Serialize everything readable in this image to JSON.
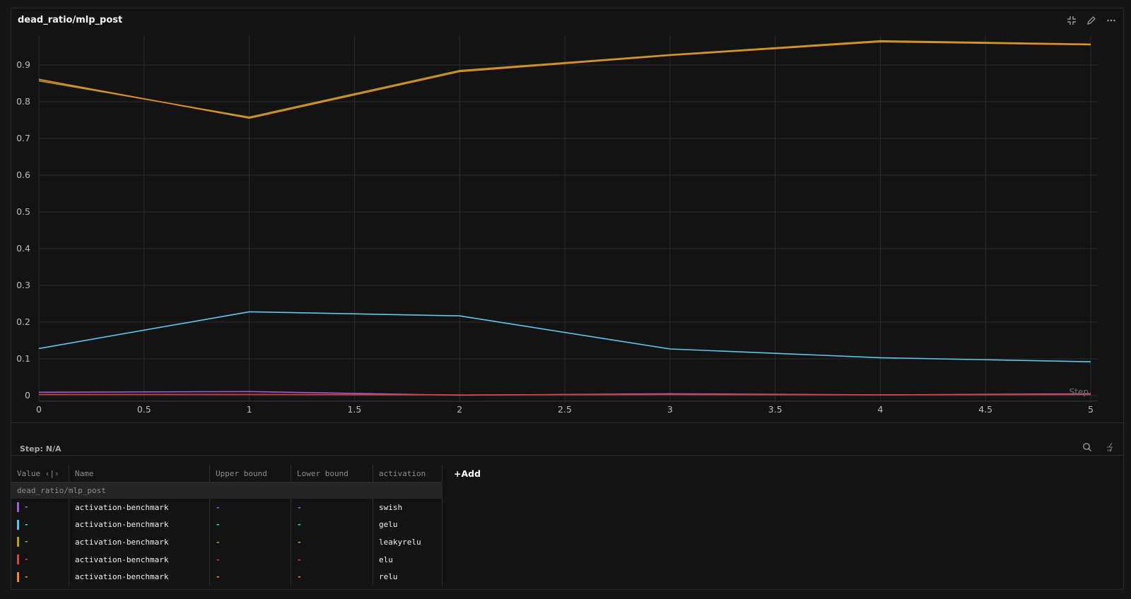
{
  "panel": {
    "title": "dead_ratio/mlp_post"
  },
  "colors": {
    "swish": "#9b5fd2",
    "gelu": "#5ac8f2",
    "leakyrelu": "#b5a019",
    "elu": "#e03e3e",
    "relu": "#ee8a2c"
  },
  "chart_data": {
    "type": "line",
    "title": "dead_ratio/mlp_post",
    "xlabel": "Step",
    "ylabel": "",
    "xlim": [
      0,
      5
    ],
    "ylim": [
      0,
      0.97
    ],
    "xticks": [
      "0",
      "0.5",
      "1",
      "1.5",
      "2",
      "2.5",
      "3",
      "3.5",
      "4",
      "4.5",
      "5"
    ],
    "yticks": [
      "0",
      "0.1",
      "0.2",
      "0.3",
      "0.4",
      "0.5",
      "0.6",
      "0.7",
      "0.8",
      "0.9"
    ],
    "grid": true,
    "x": [
      0,
      1,
      2,
      3,
      4,
      5
    ],
    "series": [
      {
        "name": "swish",
        "color": "#9b5fd2",
        "values": [
          0.009,
          0.011,
          0.001,
          0.005,
          0.002,
          0.005
        ]
      },
      {
        "name": "gelu",
        "color": "#5ac8f2",
        "values": [
          0.128,
          0.228,
          0.217,
          0.127,
          0.103,
          0.092
        ]
      },
      {
        "name": "leakyrelu",
        "color": "#b5a019",
        "values": [
          0.857,
          0.758,
          0.885,
          0.928,
          0.966,
          0.957
        ]
      },
      {
        "name": "elu",
        "color": "#e03e3e",
        "values": [
          0.003,
          0.003,
          0.002,
          0.003,
          0.002,
          0.003
        ]
      },
      {
        "name": "relu",
        "color": "#ee8a2c",
        "values": [
          0.861,
          0.755,
          0.882,
          0.926,
          0.963,
          0.955
        ]
      }
    ]
  },
  "legend": {
    "step": "Step: N/A"
  },
  "table": {
    "headers": {
      "value": "Value ‹|›",
      "name": "Name",
      "upper": "Upper bound",
      "lower": "Lower bound",
      "activation": "activation",
      "add": "+Add"
    },
    "group": "dead_ratio/mlp_post",
    "rows": [
      {
        "value": "-",
        "name": "activation-benchmark",
        "upper": "-",
        "lower": "-",
        "activation": "swish",
        "color": "#9b5fd2"
      },
      {
        "value": "-",
        "name": "activation-benchmark",
        "upper": "-",
        "lower": "-",
        "activation": "gelu",
        "color": "#5ac8f2"
      },
      {
        "value": "-",
        "name": "activation-benchmark",
        "upper": "-",
        "lower": "-",
        "activation": "leakyrelu",
        "color": "#b5a019"
      },
      {
        "value": "-",
        "name": "activation-benchmark",
        "upper": "-",
        "lower": "-",
        "activation": "elu",
        "color": "#e03e3e"
      },
      {
        "value": "-",
        "name": "activation-benchmark",
        "upper": "-",
        "lower": "-",
        "activation": "relu",
        "color": "#ee8a2c"
      }
    ]
  },
  "icons": [
    "collapse-icon",
    "edit-icon",
    "more-icon",
    "search-icon",
    "sweep-icon"
  ]
}
